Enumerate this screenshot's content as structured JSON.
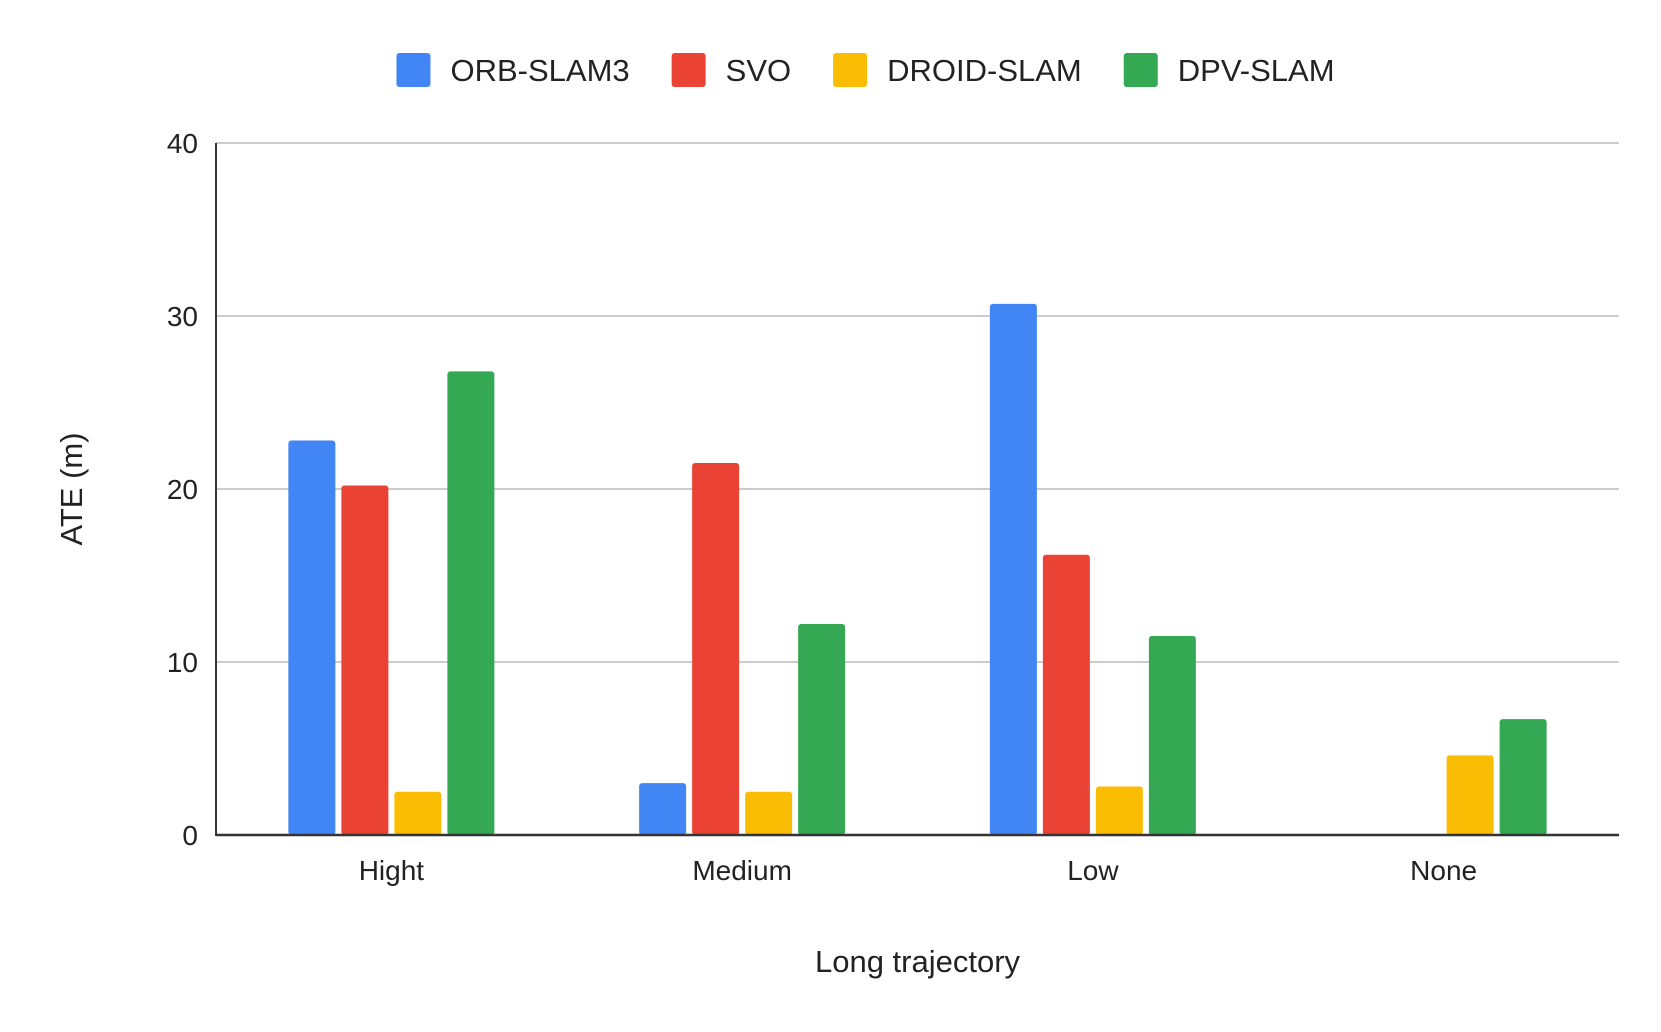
{
  "chart_data": {
    "type": "bar",
    "title": "",
    "xlabel": "Long trajectory",
    "ylabel": "ATE (m)",
    "categories": [
      "Hight",
      "Medium",
      "Low",
      "None"
    ],
    "ylim": [
      0,
      40
    ],
    "yticks": [
      0,
      10,
      20,
      30,
      40
    ],
    "grid": true,
    "legend_position": "top",
    "series": [
      {
        "name": "ORB-SLAM3",
        "color": "#4285F4",
        "values": [
          22.8,
          3.0,
          30.7,
          0
        ]
      },
      {
        "name": "SVO",
        "color": "#EA4335",
        "values": [
          20.2,
          21.5,
          16.2,
          0
        ]
      },
      {
        "name": "DROID-SLAM",
        "color": "#FBBC04",
        "values": [
          2.5,
          2.5,
          2.8,
          4.6
        ]
      },
      {
        "name": "DPV-SLAM",
        "color": "#34A853",
        "values": [
          26.8,
          12.2,
          11.5,
          6.7
        ]
      }
    ]
  }
}
